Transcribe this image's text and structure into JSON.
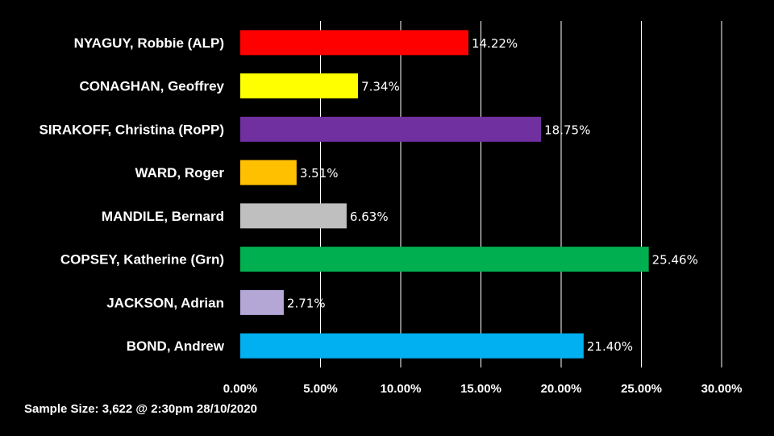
{
  "chart_data": {
    "type": "bar",
    "orientation": "horizontal",
    "categories": [
      "NYAGUY, Robbie (ALP)",
      "CONAGHAN, Geoffrey",
      "SIRAKOFF, Christina (RoPP)",
      "WARD, Roger",
      "MANDILE, Bernard",
      "COPSEY, Katherine (Grn)",
      "JACKSON, Adrian",
      "BOND, Andrew"
    ],
    "values": [
      14.22,
      7.34,
      18.75,
      3.51,
      6.63,
      25.46,
      2.71,
      21.4
    ],
    "data_labels": [
      "14.22%",
      "7.34%",
      "18.75%",
      "3.51%",
      "6.63%",
      "25.46%",
      "2.71%",
      "21.40%"
    ],
    "colors": [
      "#ff0000",
      "#ffff00",
      "#7030a0",
      "#ffc000",
      "#bfbfbf",
      "#00b050",
      "#b4a7d6",
      "#00b0f0"
    ],
    "xlim": [
      0,
      30
    ],
    "x_ticks": [
      0,
      5,
      10,
      15,
      20,
      25,
      30
    ],
    "x_tick_labels": [
      "0.00%",
      "5.00%",
      "10.00%",
      "15.00%",
      "20.00%",
      "25.00%",
      "30.00%"
    ],
    "grid": "vertical",
    "grid_color": "#ffffff",
    "background": "#000000",
    "title": "",
    "xlabel": "",
    "ylabel": ""
  },
  "footnote": "Sample Size: 3,622 @ 2:30pm 28/10/2020"
}
